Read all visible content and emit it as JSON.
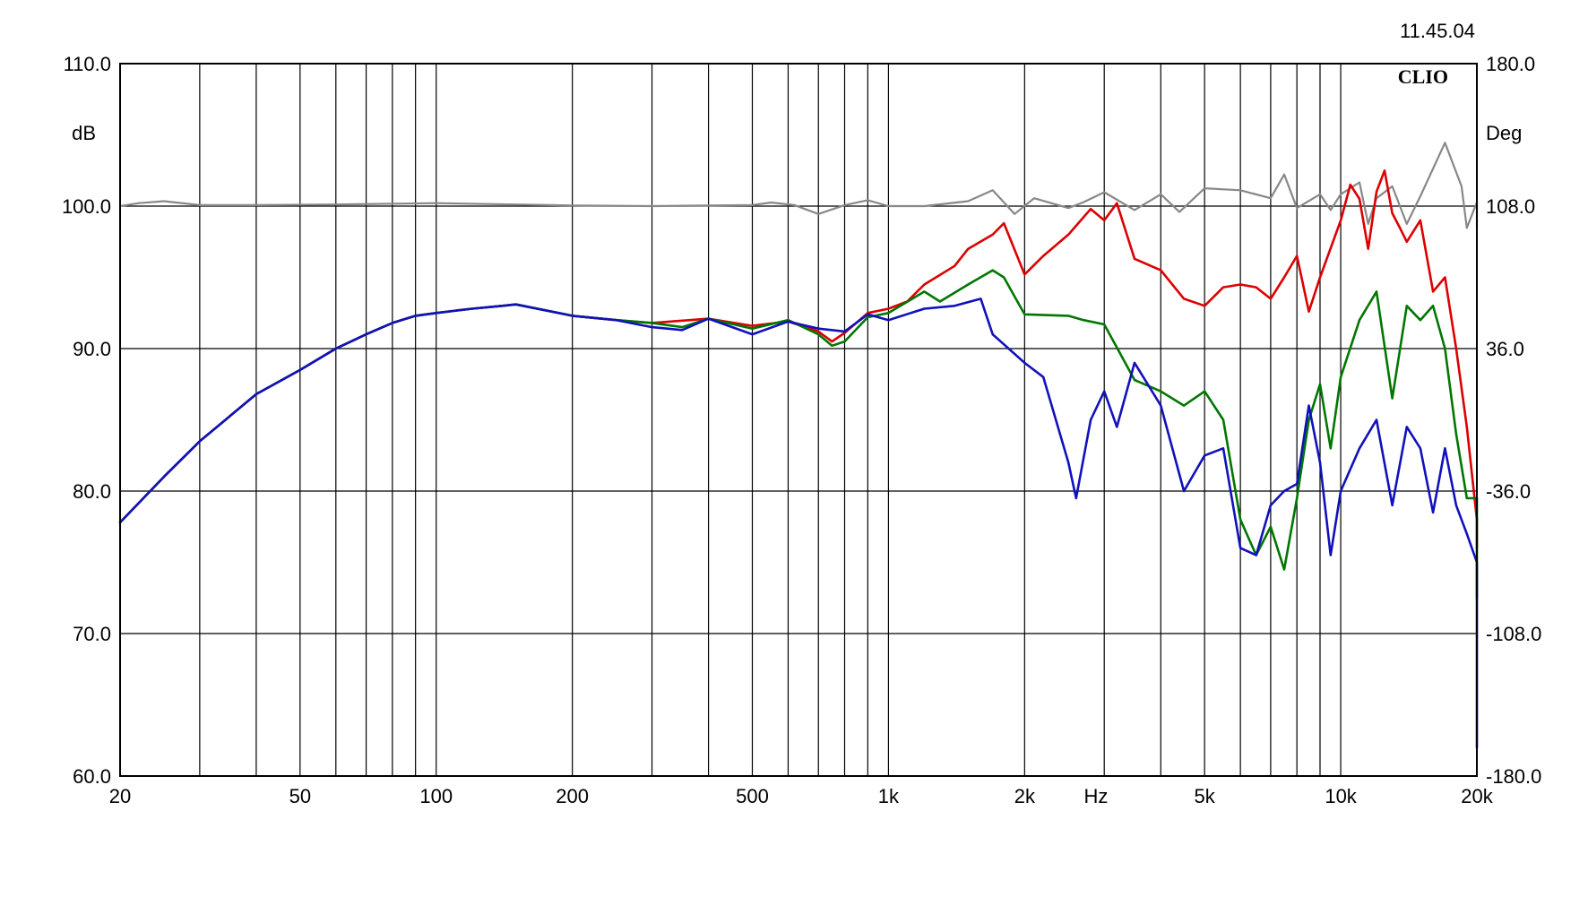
{
  "chart_data": {
    "type": "line",
    "timestamp": "11.45.04",
    "logo": "CLIO",
    "xscale": "log",
    "xlim": [
      20,
      20000
    ],
    "xlabel": "Hz",
    "xticks": [
      {
        "value": 20,
        "label": "20"
      },
      {
        "value": 50,
        "label": "50"
      },
      {
        "value": 100,
        "label": "100"
      },
      {
        "value": 200,
        "label": "200"
      },
      {
        "value": 500,
        "label": "500"
      },
      {
        "value": 1000,
        "label": "1k"
      },
      {
        "value": 2000,
        "label": "2k"
      },
      {
        "value": 5000,
        "label": "5k"
      },
      {
        "value": 10000,
        "label": "10k"
      },
      {
        "value": 20000,
        "label": "20k"
      }
    ],
    "ylabel": "dB",
    "ylim": [
      60,
      110
    ],
    "yticks": [
      "60.0",
      "70.0",
      "80.0",
      "90.0",
      "100.0",
      "110.0"
    ],
    "y2label": "Deg",
    "y2lim": [
      -180,
      180
    ],
    "y2ticks": [
      "-180.0",
      "-108.0",
      "-36.0",
      "36.0",
      "108.0",
      "180.0"
    ],
    "grid": true,
    "series": [
      {
        "color": "#888888",
        "axis": "right",
        "points": [
          [
            20,
            108
          ],
          [
            22,
            109.5
          ],
          [
            25,
            110.5
          ],
          [
            30,
            108.5
          ],
          [
            40,
            108.5
          ],
          [
            60,
            108.8
          ],
          [
            100,
            109.5
          ],
          [
            200,
            108.3
          ],
          [
            300,
            108
          ],
          [
            500,
            108.5
          ],
          [
            550,
            109.8
          ],
          [
            620,
            108.5
          ],
          [
            700,
            104
          ],
          [
            800,
            108.5
          ],
          [
            900,
            111
          ],
          [
            1000,
            108
          ],
          [
            1200,
            108
          ],
          [
            1500,
            110.5
          ],
          [
            1700,
            116
          ],
          [
            1900,
            104
          ],
          [
            2100,
            112
          ],
          [
            2500,
            107
          ],
          [
            2700,
            110
          ],
          [
            3000,
            115
          ],
          [
            3500,
            106
          ],
          [
            4000,
            114
          ],
          [
            4400,
            105
          ],
          [
            5000,
            117
          ],
          [
            6000,
            116
          ],
          [
            7000,
            112
          ],
          [
            7500,
            124
          ],
          [
            8000,
            107
          ],
          [
            9000,
            114
          ],
          [
            9500,
            106
          ],
          [
            10000,
            114
          ],
          [
            11000,
            120
          ],
          [
            11500,
            99
          ],
          [
            12000,
            112
          ],
          [
            13000,
            118
          ],
          [
            14000,
            99
          ],
          [
            15000,
            113
          ],
          [
            17000,
            140
          ],
          [
            18500,
            118
          ],
          [
            19000,
            97
          ],
          [
            20000,
            110
          ],
          [
            21000,
            97
          ]
        ]
      },
      {
        "color": "#dd0000",
        "axis": "left",
        "points": [
          [
            20,
            77.8
          ],
          [
            25,
            81
          ],
          [
            30,
            83.5
          ],
          [
            40,
            86.8
          ],
          [
            50,
            88.5
          ],
          [
            60,
            90
          ],
          [
            70,
            91
          ],
          [
            80,
            91.8
          ],
          [
            90,
            92.3
          ],
          [
            100,
            92.5
          ],
          [
            120,
            92.8
          ],
          [
            140,
            93
          ],
          [
            150,
            93.1
          ],
          [
            200,
            92.3
          ],
          [
            250,
            92
          ],
          [
            300,
            91.8
          ],
          [
            400,
            92.1
          ],
          [
            500,
            91.6
          ],
          [
            600,
            91.9
          ],
          [
            700,
            91.2
          ],
          [
            750,
            90.5
          ],
          [
            800,
            91.1
          ],
          [
            900,
            92.5
          ],
          [
            1000,
            92.8
          ],
          [
            1100,
            93.3
          ],
          [
            1200,
            94.5
          ],
          [
            1400,
            95.8
          ],
          [
            1500,
            97
          ],
          [
            1700,
            98
          ],
          [
            1800,
            98.8
          ],
          [
            2000,
            95.2
          ],
          [
            2200,
            96.5
          ],
          [
            2500,
            98
          ],
          [
            2800,
            99.8
          ],
          [
            3000,
            99
          ],
          [
            3200,
            100.2
          ],
          [
            3500,
            96.3
          ],
          [
            4000,
            95.5
          ],
          [
            4500,
            93.5
          ],
          [
            5000,
            93
          ],
          [
            5500,
            94.3
          ],
          [
            6000,
            94.5
          ],
          [
            6500,
            94.3
          ],
          [
            7000,
            93.5
          ],
          [
            7500,
            95
          ],
          [
            8000,
            96.5
          ],
          [
            8500,
            92.6
          ],
          [
            9000,
            95
          ],
          [
            10000,
            99
          ],
          [
            10500,
            101.5
          ],
          [
            11000,
            100.5
          ],
          [
            11500,
            97
          ],
          [
            12000,
            101
          ],
          [
            12500,
            102.5
          ],
          [
            13000,
            99.5
          ],
          [
            13500,
            98.5
          ],
          [
            14000,
            97.5
          ],
          [
            15000,
            99
          ],
          [
            16000,
            94
          ],
          [
            17000,
            95
          ],
          [
            18000,
            90
          ],
          [
            19000,
            84.5
          ],
          [
            20000,
            78
          ],
          [
            21000,
            76
          ]
        ]
      },
      {
        "color": "#007700",
        "axis": "left",
        "points": [
          [
            20,
            77.8
          ],
          [
            25,
            81
          ],
          [
            30,
            83.5
          ],
          [
            40,
            86.8
          ],
          [
            50,
            88.5
          ],
          [
            60,
            90
          ],
          [
            70,
            91
          ],
          [
            80,
            91.8
          ],
          [
            90,
            92.3
          ],
          [
            100,
            92.5
          ],
          [
            120,
            92.8
          ],
          [
            140,
            93
          ],
          [
            150,
            93.1
          ],
          [
            200,
            92.3
          ],
          [
            250,
            92
          ],
          [
            300,
            91.8
          ],
          [
            350,
            91.5
          ],
          [
            400,
            92.1
          ],
          [
            500,
            91.4
          ],
          [
            600,
            92
          ],
          [
            700,
            91
          ],
          [
            750,
            90.2
          ],
          [
            800,
            90.5
          ],
          [
            900,
            92.2
          ],
          [
            1000,
            92.5
          ],
          [
            1200,
            94
          ],
          [
            1300,
            93.3
          ],
          [
            1500,
            94.5
          ],
          [
            1700,
            95.5
          ],
          [
            1800,
            95
          ],
          [
            2000,
            92.4
          ],
          [
            2500,
            92.3
          ],
          [
            2700,
            92
          ],
          [
            3000,
            91.7
          ],
          [
            3500,
            87.8
          ],
          [
            4000,
            87
          ],
          [
            4500,
            86
          ],
          [
            5000,
            87
          ],
          [
            5500,
            85
          ],
          [
            6000,
            78
          ],
          [
            6500,
            75.5
          ],
          [
            7000,
            77.5
          ],
          [
            7500,
            74.5
          ],
          [
            8000,
            79.5
          ],
          [
            8500,
            85
          ],
          [
            9000,
            87.5
          ],
          [
            9500,
            83
          ],
          [
            10000,
            88
          ],
          [
            11000,
            92
          ],
          [
            12000,
            94
          ],
          [
            13000,
            86.5
          ],
          [
            14000,
            93
          ],
          [
            15000,
            92
          ],
          [
            16000,
            93
          ],
          [
            17000,
            90
          ],
          [
            18000,
            84
          ],
          [
            19000,
            79.5
          ],
          [
            20000,
            79.5
          ],
          [
            21000,
            74.5
          ],
          [
            21500,
            72.5
          ]
        ]
      },
      {
        "color": "#1111bb",
        "axis": "left",
        "points": [
          [
            20,
            77.8
          ],
          [
            25,
            81
          ],
          [
            30,
            83.5
          ],
          [
            40,
            86.8
          ],
          [
            50,
            88.5
          ],
          [
            60,
            90
          ],
          [
            70,
            91
          ],
          [
            80,
            91.8
          ],
          [
            90,
            92.3
          ],
          [
            100,
            92.5
          ],
          [
            120,
            92.8
          ],
          [
            140,
            93
          ],
          [
            150,
            93.1
          ],
          [
            200,
            92.3
          ],
          [
            250,
            92
          ],
          [
            300,
            91.5
          ],
          [
            350,
            91.3
          ],
          [
            400,
            92.1
          ],
          [
            500,
            91
          ],
          [
            600,
            91.9
          ],
          [
            700,
            91.4
          ],
          [
            800,
            91.2
          ],
          [
            900,
            92.4
          ],
          [
            1000,
            92
          ],
          [
            1200,
            92.8
          ],
          [
            1400,
            93
          ],
          [
            1600,
            93.5
          ],
          [
            1700,
            91
          ],
          [
            2000,
            89
          ],
          [
            2200,
            88
          ],
          [
            2500,
            82
          ],
          [
            2600,
            79.5
          ],
          [
            2800,
            85
          ],
          [
            3000,
            87
          ],
          [
            3200,
            84.5
          ],
          [
            3500,
            89
          ],
          [
            4000,
            86
          ],
          [
            4500,
            80
          ],
          [
            5000,
            82.5
          ],
          [
            5500,
            83
          ],
          [
            6000,
            76
          ],
          [
            6500,
            75.5
          ],
          [
            7000,
            79
          ],
          [
            7500,
            80
          ],
          [
            8000,
            80.5
          ],
          [
            8500,
            86
          ],
          [
            9000,
            82
          ],
          [
            9500,
            75.5
          ],
          [
            10000,
            80
          ],
          [
            11000,
            83
          ],
          [
            12000,
            85
          ],
          [
            13000,
            79
          ],
          [
            14000,
            84.5
          ],
          [
            15000,
            83
          ],
          [
            16000,
            78.5
          ],
          [
            17000,
            83
          ],
          [
            18000,
            79
          ],
          [
            19000,
            77
          ],
          [
            20000,
            75
          ],
          [
            21000,
            70
          ],
          [
            22000,
            66
          ],
          [
            23000,
            67.5
          ],
          [
            24000,
            62
          ]
        ]
      }
    ]
  }
}
